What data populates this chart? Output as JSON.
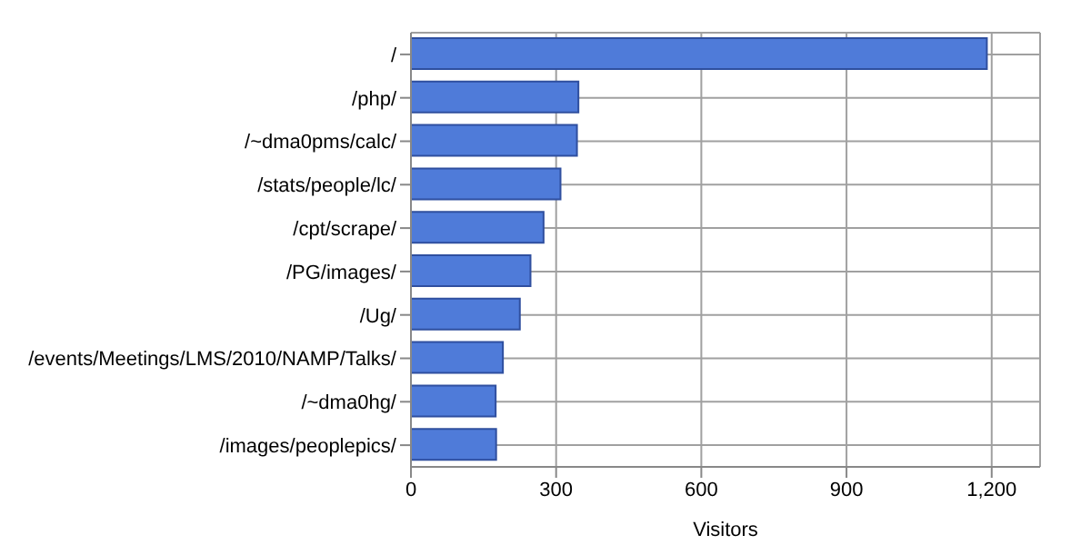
{
  "chart_data": {
    "type": "bar",
    "orientation": "horizontal",
    "xlabel": "Visitors",
    "categories": [
      "/",
      "/php/",
      "/~dma0pms/calc/",
      "/stats/people/lc/",
      "/cpt/scrape/",
      "/PG/images/",
      "/Ug/",
      "/events/Meetings/LMS/2010/NAMP/Talks/",
      "/~dma0hg/",
      "/images/peoplepics/"
    ],
    "values": [
      1190,
      346,
      343,
      309,
      274,
      247,
      225,
      190,
      175,
      176
    ],
    "color": "#4f7bd9",
    "xlim": [
      0,
      1300
    ],
    "xticks": [
      0,
      300,
      600,
      900,
      {
        "value": 1200,
        "label": "1,200"
      }
    ],
    "grid": true
  }
}
